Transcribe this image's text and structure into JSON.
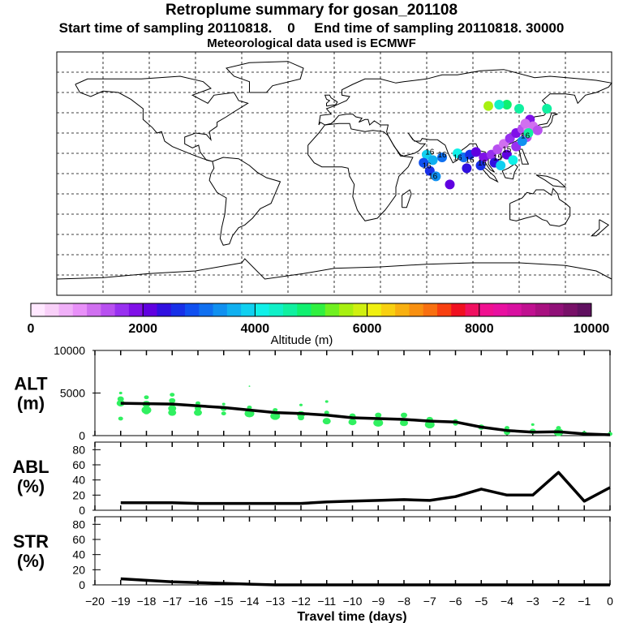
{
  "title": "Retroplume summary for gosan_201108",
  "sampling_line": "Start time of sampling 20110818.    0     End time of sampling 20110818. 30000",
  "met_line": "Meteorological data used is ECMWF",
  "colorbar": {
    "label": "Altitude (m)",
    "ticks": [
      "0",
      "2000",
      "4000",
      "6000",
      "8000",
      "10000"
    ],
    "colors": [
      "#ffe8ff",
      "#f8d0f8",
      "#f0b0f8",
      "#e890f8",
      "#d070f0",
      "#b850f0",
      "#9830f0",
      "#8010e8",
      "#6000e0",
      "#3010e0",
      "#1830e8",
      "#1050f0",
      "#1070f0",
      "#1090f0",
      "#10b0f0",
      "#10d0f0",
      "#10f0e8",
      "#10f0c8",
      "#10f0a0",
      "#10f070",
      "#30f040",
      "#70f020",
      "#a8f010",
      "#d0f010",
      "#f0f010",
      "#f8d010",
      "#f8b010",
      "#f89010",
      "#f87010",
      "#f84010",
      "#f01020",
      "#f01060",
      "#f01090",
      "#e810a0",
      "#d810a0",
      "#c01090",
      "#a81080",
      "#901078",
      "#781068",
      "#601060"
    ]
  },
  "chart_data": [
    {
      "type": "scatter+line",
      "panel": "ALT",
      "ylabel": "ALT\n(m)",
      "ylabel_lines": [
        "ALT",
        "(m)"
      ],
      "ylim": [
        0,
        10000
      ],
      "yticks": [
        "0",
        "5000",
        "10000"
      ],
      "line": {
        "x": [
          -19,
          -18,
          -17,
          -16,
          -15,
          -14,
          -13,
          -12,
          -11,
          -10,
          -9,
          -8,
          -7,
          -6,
          -5,
          -4,
          -3,
          -2,
          -1,
          0
        ],
        "y": [
          3800,
          3750,
          3700,
          3500,
          3300,
          3000,
          2700,
          2600,
          2400,
          2100,
          2000,
          1900,
          1700,
          1600,
          1000,
          600,
          400,
          450,
          200,
          100
        ]
      },
      "points": [
        {
          "x": -19,
          "y": 5000,
          "r": 2
        },
        {
          "x": -19,
          "y": 4300,
          "r": 4
        },
        {
          "x": -19,
          "y": 3800,
          "r": 5
        },
        {
          "x": -19,
          "y": 2000,
          "r": 3
        },
        {
          "x": -18,
          "y": 4500,
          "r": 3
        },
        {
          "x": -18,
          "y": 3700,
          "r": 5
        },
        {
          "x": -18,
          "y": 3000,
          "r": 6
        },
        {
          "x": -18,
          "y": 2800,
          "r": 4
        },
        {
          "x": -17,
          "y": 4800,
          "r": 3
        },
        {
          "x": -17,
          "y": 4100,
          "r": 4
        },
        {
          "x": -17,
          "y": 3200,
          "r": 5
        },
        {
          "x": -17,
          "y": 2700,
          "r": 5
        },
        {
          "x": -16,
          "y": 3800,
          "r": 3
        },
        {
          "x": -16,
          "y": 3200,
          "r": 4
        },
        {
          "x": -16,
          "y": 2700,
          "r": 5
        },
        {
          "x": -15,
          "y": 3700,
          "r": 2
        },
        {
          "x": -15,
          "y": 3200,
          "r": 4
        },
        {
          "x": -15,
          "y": 2600,
          "r": 3
        },
        {
          "x": -14,
          "y": 5800,
          "r": 1
        },
        {
          "x": -14,
          "y": 3300,
          "r": 3
        },
        {
          "x": -14,
          "y": 2600,
          "r": 6
        },
        {
          "x": -13,
          "y": 3000,
          "r": 3
        },
        {
          "x": -13,
          "y": 2300,
          "r": 6
        },
        {
          "x": -12,
          "y": 3600,
          "r": 2
        },
        {
          "x": -12,
          "y": 2500,
          "r": 5
        },
        {
          "x": -12,
          "y": 2100,
          "r": 4
        },
        {
          "x": -11,
          "y": 4000,
          "r": 2
        },
        {
          "x": -11,
          "y": 2700,
          "r": 3
        },
        {
          "x": -11,
          "y": 1700,
          "r": 5
        },
        {
          "x": -10,
          "y": 2300,
          "r": 4
        },
        {
          "x": -10,
          "y": 1600,
          "r": 5
        },
        {
          "x": -9,
          "y": 2400,
          "r": 4
        },
        {
          "x": -9,
          "y": 1500,
          "r": 6
        },
        {
          "x": -8,
          "y": 2400,
          "r": 4
        },
        {
          "x": -8,
          "y": 1500,
          "r": 5
        },
        {
          "x": -7,
          "y": 1900,
          "r": 4
        },
        {
          "x": -7,
          "y": 1300,
          "r": 6
        },
        {
          "x": -6,
          "y": 1700,
          "r": 3
        },
        {
          "x": -6,
          "y": 1400,
          "r": 3
        },
        {
          "x": -5,
          "y": 1000,
          "r": 4
        },
        {
          "x": -4,
          "y": 900,
          "r": 3
        },
        {
          "x": -4,
          "y": 400,
          "r": 4
        },
        {
          "x": -3,
          "y": 1300,
          "r": 2
        },
        {
          "x": -3,
          "y": 500,
          "r": 4
        },
        {
          "x": -2,
          "y": 900,
          "r": 3
        },
        {
          "x": -2,
          "y": 400,
          "r": 6
        },
        {
          "x": -1,
          "y": 300,
          "r": 3
        },
        {
          "x": 0,
          "y": 200,
          "r": 3
        }
      ]
    },
    {
      "type": "line",
      "panel": "ABL",
      "ylabel": "ABL\n(%)",
      "ylabel_lines": [
        "ABL",
        "(%)"
      ],
      "ylim": [
        0,
        90
      ],
      "yticks": [
        "0",
        "20",
        "40",
        "60",
        "80"
      ],
      "x": [
        -19,
        -18,
        -17,
        -16,
        -15,
        -14,
        -13,
        -12,
        -11,
        -10,
        -9,
        -8,
        -7,
        -6,
        -5,
        -4,
        -3,
        -2,
        -1,
        0
      ],
      "y": [
        10,
        10,
        10,
        9,
        9,
        9,
        9,
        9,
        11,
        12,
        13,
        14,
        13,
        18,
        28,
        20,
        20,
        50,
        12,
        30
      ]
    },
    {
      "type": "line",
      "panel": "STR",
      "ylabel": "STR\n(%)",
      "ylabel_lines": [
        "STR",
        "(%)"
      ],
      "ylim": [
        0,
        90
      ],
      "yticks": [
        "0",
        "20",
        "40",
        "60",
        "80"
      ],
      "x": [
        -19,
        -18,
        -17,
        -16,
        -15,
        -14,
        -13,
        -12,
        -11,
        -10,
        -9,
        -8,
        -7,
        -6,
        -5,
        -4,
        -3,
        -2,
        -1,
        0
      ],
      "y": [
        8,
        6,
        4,
        3,
        2,
        1,
        0,
        0,
        0,
        0,
        0,
        0,
        0,
        0,
        0,
        0,
        0,
        0,
        0,
        0
      ]
    }
  ],
  "xaxis": {
    "label": "Travel time (days)",
    "ticks": [
      "−20",
      "−19",
      "−18",
      "−17",
      "−16",
      "−15",
      "−14",
      "−13",
      "−12",
      "−11",
      "−10",
      "−9",
      "−8",
      "−7",
      "−6",
      "−5",
      "−4",
      "−3",
      "−2",
      "−1",
      "0"
    ]
  },
  "map": {
    "plume_labels": [
      "16",
      "16",
      "16",
      "16",
      "16",
      "15",
      "15",
      "16",
      "16",
      "16"
    ],
    "plume_points": [
      {
        "lon": 80,
        "lat": 15,
        "alt": 4000
      },
      {
        "lon": 84,
        "lat": 12,
        "alt": 3200
      },
      {
        "lon": 88,
        "lat": 14,
        "alt": 2600
      },
      {
        "lon": 92,
        "lat": 16,
        "alt": 2100
      },
      {
        "lon": 97,
        "lat": 12,
        "alt": 1800
      },
      {
        "lon": 102,
        "lat": 14,
        "alt": 1500
      },
      {
        "lon": 106,
        "lat": 18,
        "alt": 1300
      },
      {
        "lon": 110,
        "lat": 22,
        "alt": 1200
      },
      {
        "lon": 114,
        "lat": 26,
        "alt": 1500
      },
      {
        "lon": 118,
        "lat": 30,
        "alt": 1800
      },
      {
        "lon": 122,
        "lat": 33,
        "alt": 1400
      },
      {
        "lon": 125,
        "lat": 36,
        "alt": 1600
      },
      {
        "lon": 127,
        "lat": 40,
        "alt": 1900
      },
      {
        "lon": 126,
        "lat": 33,
        "alt": 900
      },
      {
        "lon": 124,
        "lat": 37,
        "alt": 1200
      },
      {
        "lon": 60,
        "lat": 14,
        "alt": 3900
      },
      {
        "lon": 64,
        "lat": 10,
        "alt": 3500
      },
      {
        "lon": 70,
        "lat": 12,
        "alt": 3000
      },
      {
        "lon": 58,
        "lat": 8,
        "alt": 2900
      },
      {
        "lon": 62,
        "lat": 2,
        "alt": 2700
      },
      {
        "lon": 66,
        "lat": -2,
        "alt": 3300
      },
      {
        "lon": 75,
        "lat": -8,
        "alt": 2200
      },
      {
        "lon": 86,
        "lat": 4,
        "alt": 2400
      },
      {
        "lon": 95,
        "lat": 6,
        "alt": 2500
      },
      {
        "lon": 104,
        "lat": 8,
        "alt": 2300
      },
      {
        "lon": 112,
        "lat": 14,
        "alt": 2000
      },
      {
        "lon": 118,
        "lat": 20,
        "alt": 1700
      },
      {
        "lon": 125,
        "lat": 27,
        "alt": 1400
      },
      {
        "lon": 129,
        "lat": 35,
        "alt": 1100
      },
      {
        "lon": 132,
        "lat": 32,
        "alt": 1300
      },
      {
        "lon": 126,
        "lat": 30,
        "alt": 4500
      },
      {
        "lon": 122,
        "lat": 24,
        "alt": 3300
      },
      {
        "lon": 116,
        "lat": 10,
        "alt": 4200
      },
      {
        "lon": 108,
        "lat": 6,
        "alt": 3800
      },
      {
        "lon": 138,
        "lat": 48,
        "alt": 4500
      },
      {
        "lon": 120,
        "lat": 48,
        "alt": 4700
      },
      {
        "lon": 100,
        "lat": 50,
        "alt": 5500
      },
      {
        "lon": 112,
        "lat": 51,
        "alt": 4800
      },
      {
        "lon": 107,
        "lat": 51,
        "alt": 4300
      }
    ]
  }
}
